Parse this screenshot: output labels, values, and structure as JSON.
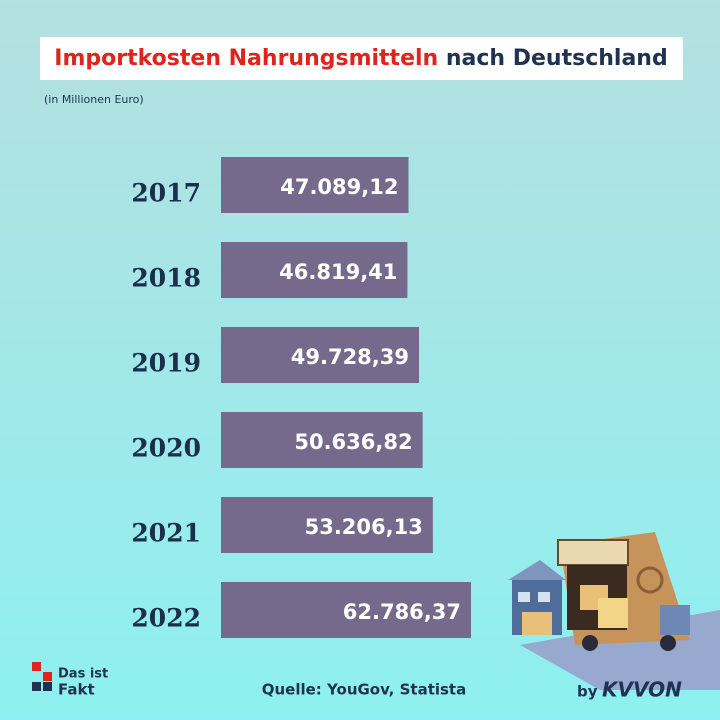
{
  "chart_data": {
    "type": "bar",
    "orientation": "horizontal",
    "title": [
      "Importkosten Nahrungsmitteln",
      "nach Deutschland"
    ],
    "subtitle": "(in Millionen Euro)",
    "categories": [
      "2017",
      "2018",
      "2019",
      "2020",
      "2021",
      "2022"
    ],
    "values": [
      47089.12,
      46819.41,
      49728.39,
      50636.82,
      53206.13,
      62786.37
    ],
    "value_labels": [
      "47.089,12",
      "46.819,41",
      "49.728,39",
      "50.636,82",
      "53.206,13",
      "62.786,37"
    ],
    "color": "#766a8c"
  },
  "source": "Quelle: YouGov, Statista",
  "logo": [
    "Das ist",
    "Fakt"
  ],
  "brand": [
    "by",
    "KVVON"
  ]
}
